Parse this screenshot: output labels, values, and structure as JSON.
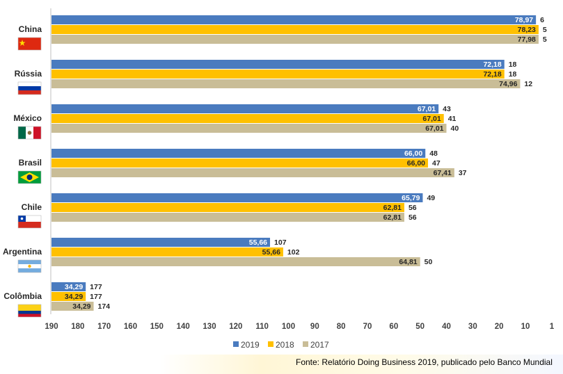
{
  "source_note": "Fonte: Relatório Doing Business 2019, publicado pelo Banco Mundial",
  "colors": {
    "2019": "#4a7bbf",
    "2018": "#ffc000",
    "2017": "#c9bd97"
  },
  "icons": {
    "China": "china-flag-icon",
    "Rússia": "russia-flag-icon",
    "México": "mexico-flag-icon",
    "Brasil": "brazil-flag-icon",
    "Chile": "chile-flag-icon",
    "Argentina": "argentina-flag-icon",
    "Colômbia": "colombia-flag-icon"
  },
  "chart_data": {
    "type": "bar",
    "orientation": "horizontal",
    "categories": [
      "China",
      "Rússia",
      "México",
      "Brasil",
      "Chile",
      "Argentina",
      "Colômbia"
    ],
    "series": [
      {
        "name": "2019",
        "values": [
          6,
          18,
          43,
          48,
          49,
          107,
          177
        ],
        "labels": [
          "78,97",
          "72,18",
          "67,01",
          "66,00",
          "65,79",
          "55,66",
          "34,29"
        ]
      },
      {
        "name": "2018",
        "values": [
          5,
          18,
          41,
          47,
          56,
          102,
          177
        ],
        "labels": [
          "78,23",
          "72,18",
          "67,01",
          "66,00",
          "62,81",
          "55,66",
          "34,29"
        ]
      },
      {
        "name": "2017",
        "values": [
          5,
          12,
          40,
          37,
          56,
          50,
          174
        ],
        "labels": [
          "77,98",
          "74,96",
          "67,01",
          "67,41",
          "62,81",
          "64,81",
          "34,29"
        ]
      }
    ],
    "x_ticks": [
      "190",
      "180",
      "170",
      "160",
      "150",
      "140",
      "130",
      "120",
      "110",
      "100",
      "90",
      "80",
      "70",
      "60",
      "50",
      "40",
      "30",
      "20",
      "10",
      "1"
    ],
    "xlim": [
      190,
      1
    ],
    "x_reversed": true,
    "legend": {
      "position": "bottom",
      "entries": [
        "2019",
        "2018",
        "2017"
      ]
    },
    "grid": false
  }
}
